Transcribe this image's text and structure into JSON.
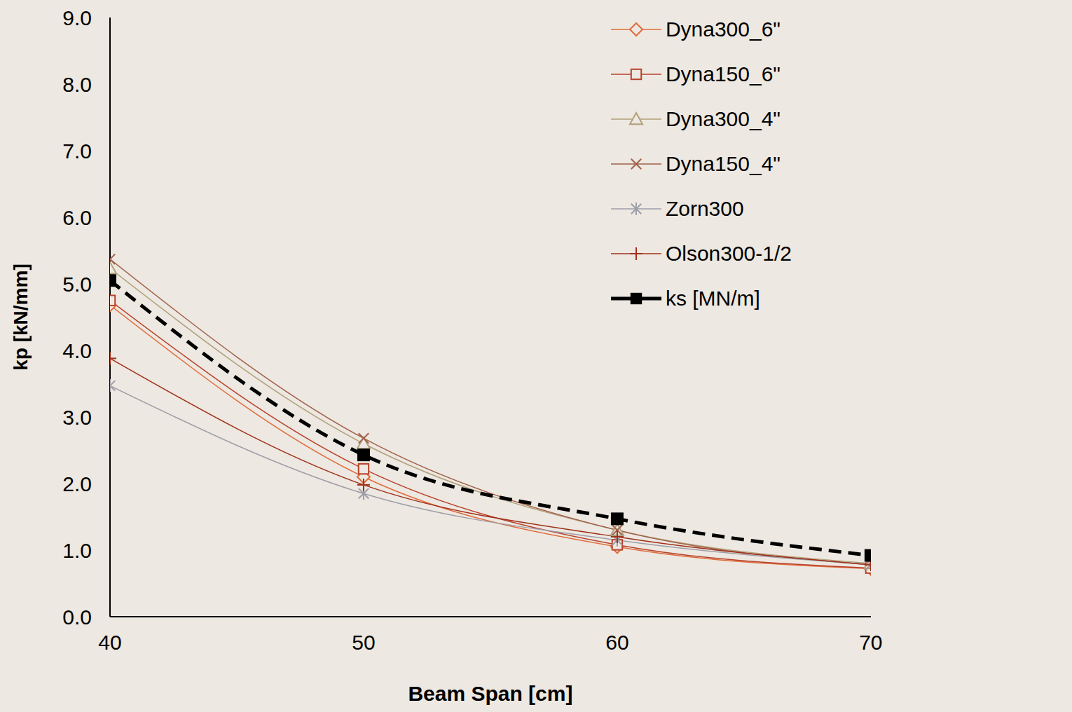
{
  "chart_data": {
    "type": "line",
    "x_label": "Beam Span [cm]",
    "y_label": "kp [kN/mm]",
    "x": [
      40,
      50,
      60,
      70
    ],
    "xlim": [
      40,
      70
    ],
    "xticks": [
      40,
      50,
      60,
      70
    ],
    "ylim": [
      0,
      9
    ],
    "yticks": [
      {
        "value": 0,
        "label": "0.0"
      },
      {
        "value": 1,
        "label": "1.0"
      },
      {
        "value": 2,
        "label": "2.0"
      },
      {
        "value": 3,
        "label": "3.0"
      },
      {
        "value": 4,
        "label": "4.0"
      },
      {
        "value": 5,
        "label": "5.0"
      },
      {
        "value": 6,
        "label": "6.0"
      },
      {
        "value": 7,
        "label": "7.0"
      },
      {
        "value": 8,
        "label": "8.0"
      },
      {
        "value": 9,
        "label": "9.0"
      }
    ],
    "grid": false,
    "legend": "upper right",
    "series": [
      {
        "name": "Dyna300_6\"",
        "color": "#e06c3c",
        "marker": "diamond",
        "line_style": "solid",
        "values": [
          4.68,
          2.1,
          1.05,
          0.72
        ]
      },
      {
        "name": "Dyna150_6\"",
        "color": "#b8412a",
        "marker": "square",
        "line_style": "solid",
        "values": [
          4.75,
          2.22,
          1.08,
          0.73
        ]
      },
      {
        "name": "Dyna300_4\"",
        "color": "#b0a07a",
        "marker": "triangle",
        "line_style": "solid",
        "values": [
          5.23,
          2.6,
          1.3,
          0.8
        ]
      },
      {
        "name": "Dyna150_4\"",
        "color": "#a0614a",
        "marker": "x",
        "line_style": "solid",
        "values": [
          5.37,
          2.68,
          1.3,
          0.78
        ]
      },
      {
        "name": "Zorn300",
        "color": "#9e9ea8",
        "marker": "asterisk",
        "line_style": "solid",
        "values": [
          3.47,
          1.85,
          1.15,
          0.78
        ]
      },
      {
        "name": "Olson300-1/2",
        "color": "#a0301a",
        "marker": "plus",
        "line_style": "solid",
        "values": [
          3.88,
          1.98,
          1.2,
          0.78
        ]
      },
      {
        "name": "ks [MN/m]",
        "color": "#000000",
        "marker": "square_filled",
        "line_style": "dashed",
        "values": [
          5.05,
          2.43,
          1.47,
          0.92
        ]
      }
    ]
  }
}
